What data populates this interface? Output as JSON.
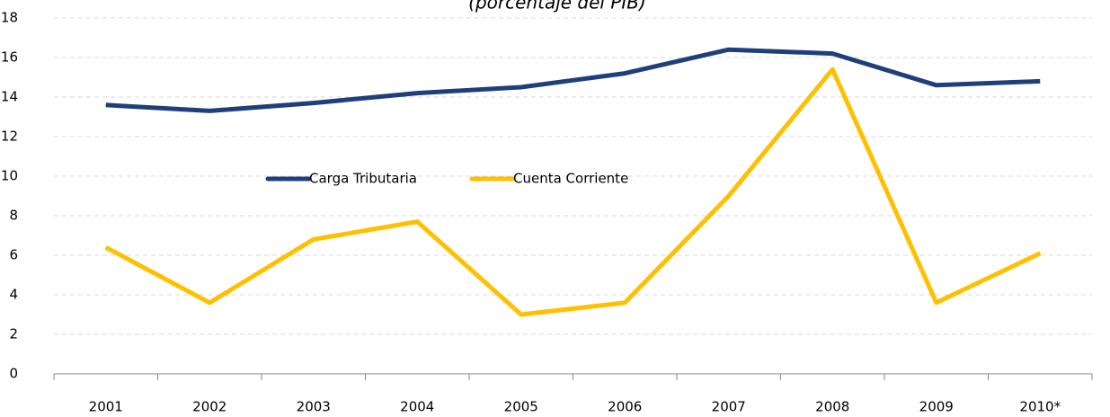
{
  "chart_data": {
    "type": "line",
    "title": "(porcentaje del PIB)",
    "categories": [
      "2001",
      "2002",
      "2003",
      "2004",
      "2005",
      "2006",
      "2007",
      "2008",
      "2009",
      "2010*"
    ],
    "series": [
      {
        "name": "Carga Tributaria",
        "color": "#1f3f7a",
        "values": [
          13.6,
          13.3,
          13.7,
          14.2,
          14.5,
          15.2,
          16.4,
          16.2,
          14.6,
          14.8
        ]
      },
      {
        "name": "Cuenta Corriente",
        "color": "#ffc000",
        "values": [
          6.4,
          3.6,
          6.8,
          7.7,
          3.0,
          3.6,
          9.0,
          15.4,
          3.6,
          6.1
        ]
      }
    ],
    "ylim": [
      0,
      18
    ],
    "yticks": [
      0,
      2,
      4,
      6,
      8,
      10,
      12,
      14,
      16,
      18
    ],
    "grid": true
  }
}
